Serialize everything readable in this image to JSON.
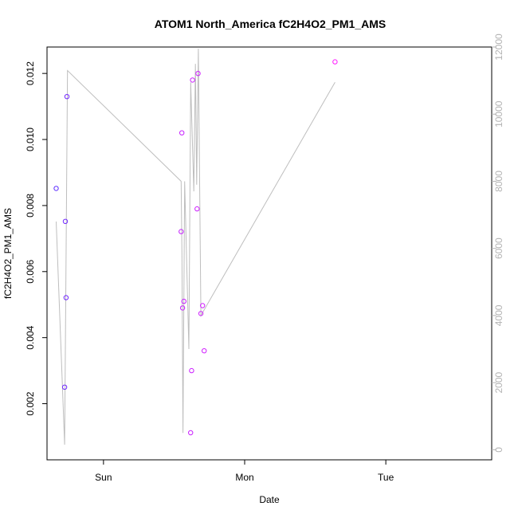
{
  "chart_data": {
    "type": "scatter",
    "title": "ATOM1 North_America fC2H4O2_PM1_AMS",
    "xlabel": "Date",
    "ylabel": "fC2H4O2_PM1_AMS",
    "x_ticks": [
      {
        "value": 1.0,
        "label": "Sun"
      },
      {
        "value": 2.0,
        "label": "Mon"
      },
      {
        "value": 3.0,
        "label": "Tue"
      }
    ],
    "xlim": [
      0.6,
      3.75
    ],
    "y_left": {
      "lim": [
        0.0003,
        0.0128
      ],
      "ticks": [
        0.002,
        0.004,
        0.006,
        0.008,
        0.01,
        0.012
      ],
      "tick_labels": [
        "0.002",
        "0.004",
        "0.006",
        "0.008",
        "0.010",
        "0.012"
      ]
    },
    "y_right": {
      "lim": [
        -300,
        12000
      ],
      "ticks": [
        0,
        2000,
        4000,
        6000,
        8000,
        10000,
        12000
      ],
      "tick_labels": [
        "0",
        "2000",
        "4000",
        "6000",
        "8000",
        "10000",
        "12000"
      ],
      "color": "#b3b3b3"
    },
    "colors": {
      "line": "#bebebe",
      "points_start": "#5b2bff",
      "points_end": "#ff1aff"
    },
    "series": [
      {
        "axis": "left",
        "points": [
          {
            "x": 0.665,
            "y": 0.00852
          },
          {
            "x": 0.725,
            "y": 0.0025
          },
          {
            "x": 0.73,
            "y": 0.00752
          },
          {
            "x": 0.735,
            "y": 0.00521
          },
          {
            "x": 0.741,
            "y": 0.0113
          },
          {
            "x": 1.55,
            "y": 0.00721
          },
          {
            "x": 1.555,
            "y": 0.0102
          },
          {
            "x": 1.56,
            "y": 0.0049
          },
          {
            "x": 1.57,
            "y": 0.0051
          },
          {
            "x": 1.617,
            "y": 0.00112
          },
          {
            "x": 1.624,
            "y": 0.003
          },
          {
            "x": 1.631,
            "y": 0.0118
          },
          {
            "x": 1.663,
            "y": 0.0079
          },
          {
            "x": 1.67,
            "y": 0.012
          },
          {
            "x": 1.69,
            "y": 0.00473
          },
          {
            "x": 1.702,
            "y": 0.00497
          },
          {
            "x": 1.713,
            "y": 0.0036
          },
          {
            "x": 2.64,
            "y": 0.01235
          }
        ]
      },
      {
        "axis": "right",
        "points": [
          {
            "x": 0.665,
            "y": 6800
          },
          {
            "x": 0.725,
            "y": 150
          },
          {
            "x": 0.745,
            "y": 11300
          },
          {
            "x": 1.55,
            "y": 8000
          },
          {
            "x": 1.556,
            "y": 5800
          },
          {
            "x": 1.563,
            "y": 500
          },
          {
            "x": 1.575,
            "y": 8000
          },
          {
            "x": 1.605,
            "y": 3000
          },
          {
            "x": 1.618,
            "y": 10950
          },
          {
            "x": 1.64,
            "y": 7700
          },
          {
            "x": 1.651,
            "y": 11500
          },
          {
            "x": 1.66,
            "y": 7900
          },
          {
            "x": 1.672,
            "y": 11950
          },
          {
            "x": 1.69,
            "y": 4000
          },
          {
            "x": 2.64,
            "y": 10950
          }
        ]
      }
    ]
  }
}
